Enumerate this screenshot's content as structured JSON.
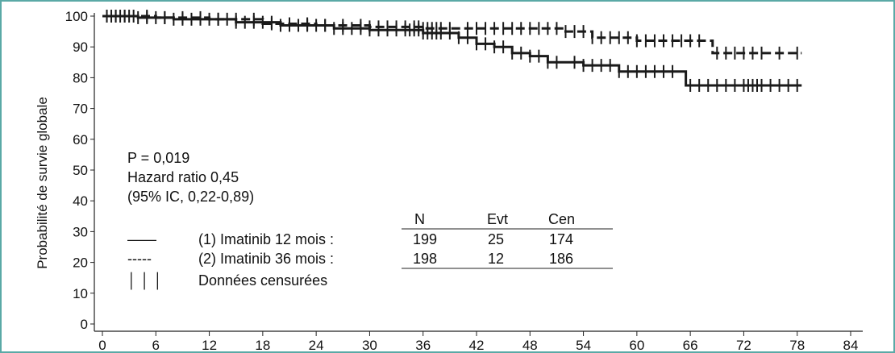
{
  "chart_data": {
    "type": "line",
    "title": "",
    "xlabel": "",
    "ylabel": "Probabilité de survie globale",
    "xlim": [
      0,
      84
    ],
    "ylim": [
      0,
      100
    ],
    "xticks": [
      0,
      6,
      12,
      18,
      24,
      30,
      36,
      42,
      48,
      54,
      60,
      66,
      72,
      78,
      84
    ],
    "yticks": [
      0,
      10,
      20,
      30,
      40,
      50,
      60,
      70,
      80,
      90,
      100
    ],
    "grid": false,
    "annotations": [
      "P = 0,019",
      "Hazard ratio 0,45",
      "(95% IC, 0,22-0,89)"
    ],
    "legend": {
      "placement": "bottom-left",
      "headers": [
        "N",
        "Evt",
        "Cen"
      ],
      "rows": [
        {
          "symbol": "——",
          "label": "(1) Imatinib 12 mois :",
          "n": "199",
          "evt": "25",
          "cen": "174"
        },
        {
          "symbol": "-----",
          "label": "(2) Imatinib 36 mois :",
          "n": "198",
          "evt": "12",
          "cen": "186"
        },
        {
          "symbol": "│ │ │",
          "label": "Données censurées"
        }
      ]
    },
    "series": [
      {
        "style": "solid",
        "x": [
          0,
          4,
          8,
          12,
          15,
          20,
          26,
          30,
          36,
          40,
          42,
          44,
          46,
          48,
          50,
          54,
          58,
          62,
          65,
          65.5,
          72,
          78.5
        ],
        "y": [
          100,
          99.5,
          99,
          99,
          98,
          97,
          96,
          95.5,
          94.5,
          93,
          91,
          90,
          88,
          87,
          85,
          84,
          82,
          82,
          82,
          77.5,
          77.5,
          77.5
        ],
        "censored_x": [
          0.5,
          1,
          1.5,
          2,
          2.5,
          3,
          4,
          5,
          6,
          7,
          8,
          9,
          10,
          11,
          12,
          13,
          14,
          15,
          16,
          17,
          18,
          19,
          20,
          21,
          22,
          23,
          24,
          25,
          26,
          27,
          28,
          29,
          30,
          31,
          32,
          33,
          34,
          34.5,
          35,
          35.5,
          36,
          36.5,
          37,
          37.5,
          38,
          39,
          40,
          41,
          42,
          43,
          44,
          45,
          46,
          47,
          48,
          49,
          50,
          51,
          53,
          54,
          55,
          56,
          57,
          58,
          59,
          60,
          61,
          62,
          63,
          64,
          66,
          67,
          68,
          69,
          70,
          71,
          72,
          72.5,
          73,
          73.5,
          74,
          75,
          76,
          77,
          78
        ]
      },
      {
        "style": "dashed",
        "x": [
          0,
          6,
          12,
          18,
          24,
          30,
          36,
          40,
          43,
          52,
          55,
          60,
          68,
          68.5,
          78.5
        ],
        "y": [
          100,
          99.5,
          99,
          97.5,
          97,
          96.5,
          96,
          96,
          96,
          95,
          93,
          92,
          92,
          88,
          88
        ],
        "censored_x": [
          0.5,
          1.5,
          2.5,
          3.5,
          5,
          7,
          9,
          11,
          13,
          15,
          17,
          19,
          21,
          23,
          25,
          27,
          29,
          30,
          31,
          32,
          33,
          34,
          35,
          35.5,
          36,
          36.5,
          37,
          37.5,
          38,
          39,
          41,
          42,
          43,
          44,
          45,
          46,
          47,
          48,
          49,
          50,
          51,
          52,
          53,
          54,
          55,
          56,
          57,
          58,
          59,
          60,
          61,
          62,
          63,
          64,
          65,
          66,
          67,
          69,
          70,
          71,
          72,
          73,
          74,
          76,
          78
        ]
      }
    ]
  }
}
